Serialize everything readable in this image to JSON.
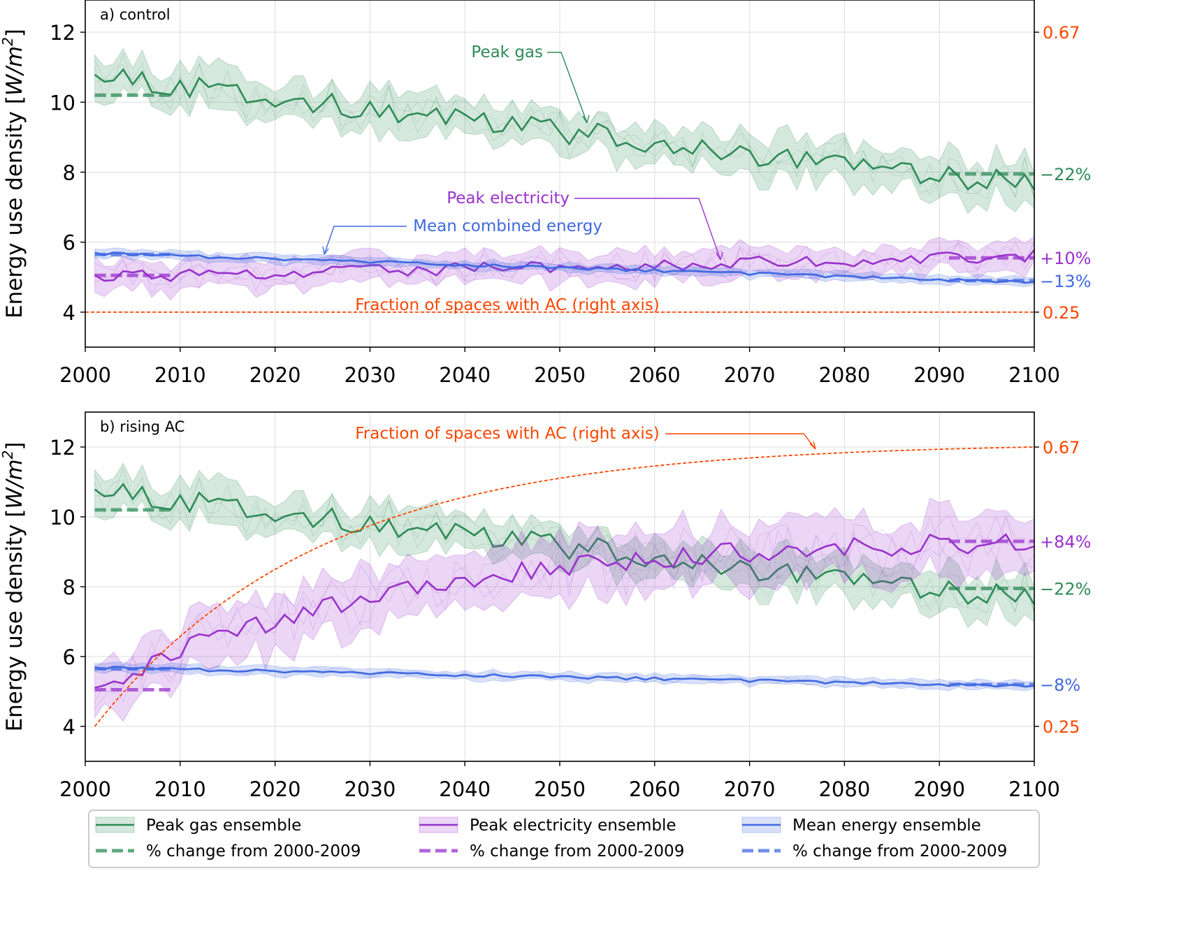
{
  "chart_data": [
    {
      "type": "line",
      "title": "a) control",
      "ylabel": "Energy use density [W/m²]",
      "ylabel_main": "Energy use density [",
      "ylabel_unit": "W/m",
      "ylabel_sup": "2",
      "ylabel_close": "]",
      "xlim": [
        2000,
        2100
      ],
      "ylim": [
        3,
        13
      ],
      "x_ticks": [
        "2000",
        "2010",
        "2020",
        "2030",
        "2040",
        "2050",
        "2060",
        "2070",
        "2080",
        "2090",
        "2100"
      ],
      "y_ticks": [
        "4",
        "6",
        "8",
        "10",
        "12"
      ],
      "right_axis": {
        "label_low": "0.25",
        "label_high": "0.67",
        "value_low": 0.25,
        "value_high": 0.67
      },
      "series": [
        {
          "name": "Peak gas ensemble",
          "color": "#2e8b57",
          "start": 10.7,
          "end": 7.6,
          "baseline": 10.2,
          "final_avg": 7.95,
          "spread": 0.55,
          "noise": 0.35,
          "change_label": "−22%"
        },
        {
          "name": "Peak electricity ensemble",
          "color": "#9932cc",
          "start": 5.0,
          "end": 5.6,
          "baseline": 5.05,
          "final_avg": 5.55,
          "spread": 0.4,
          "noise": 0.18,
          "change_label": "+10%"
        },
        {
          "name": "Mean energy ensemble",
          "color": "#4169e1",
          "start": 5.68,
          "end": 4.85,
          "baseline": 5.65,
          "final_avg": 4.9,
          "spread": 0.12,
          "noise": 0.04,
          "change_label": "−13%"
        }
      ],
      "ac_fraction": {
        "type": "constant",
        "value": 0.25
      },
      "annotations": {
        "gas": "Peak gas",
        "elec": "Peak electricity",
        "mean": "Mean combined energy",
        "ac": "Fraction of spaces with AC (right axis)"
      }
    },
    {
      "type": "line",
      "title": "b) rising AC",
      "ylabel": "Energy use density [W/m²]",
      "ylabel_main": "Energy use density [",
      "ylabel_unit": "W/m",
      "ylabel_sup": "2",
      "ylabel_close": "]",
      "xlim": [
        2000,
        2100
      ],
      "ylim": [
        3,
        13
      ],
      "x_ticks": [
        "2000",
        "2010",
        "2020",
        "2030",
        "2040",
        "2050",
        "2060",
        "2070",
        "2080",
        "2090",
        "2100"
      ],
      "y_ticks": [
        "4",
        "6",
        "8",
        "10",
        "12"
      ],
      "right_axis": {
        "label_low": "0.25",
        "label_high": "0.67",
        "value_low": 0.25,
        "value_high": 0.67
      },
      "series": [
        {
          "name": "Peak gas ensemble",
          "color": "#2e8b57",
          "start": 10.7,
          "end": 7.6,
          "baseline": 10.2,
          "final_avg": 7.95,
          "spread": 0.55,
          "noise": 0.35,
          "change_label": "−22%"
        },
        {
          "name": "Peak electricity ensemble",
          "color": "#9932cc",
          "start": 5.0,
          "end": 9.3,
          "baseline": 5.05,
          "final_avg": 9.3,
          "spread": 0.8,
          "noise": 0.3,
          "change_label": "+84%"
        },
        {
          "name": "Mean energy ensemble",
          "color": "#4169e1",
          "start": 5.68,
          "end": 5.15,
          "baseline": 5.65,
          "final_avg": 5.2,
          "spread": 0.12,
          "noise": 0.04,
          "change_label": "−8%"
        }
      ],
      "ac_fraction": {
        "type": "rising",
        "start": 0.25,
        "end": 0.67
      },
      "annotations": {
        "ac": "Fraction of spaces with AC (right axis)"
      }
    }
  ],
  "legend": {
    "items": [
      {
        "line_label": "Peak gas ensemble",
        "dash_label": "% change from 2000-2009",
        "color": "#2e8b57"
      },
      {
        "line_label": "Peak electricity ensemble",
        "dash_label": "% change from 2000-2009",
        "color": "#9932cc"
      },
      {
        "line_label": "Mean energy ensemble",
        "dash_label": "% change from 2000-2009",
        "color": "#4169e1"
      }
    ]
  },
  "colors": {
    "ac": "#ff4500",
    "grid": "#dddddd"
  }
}
